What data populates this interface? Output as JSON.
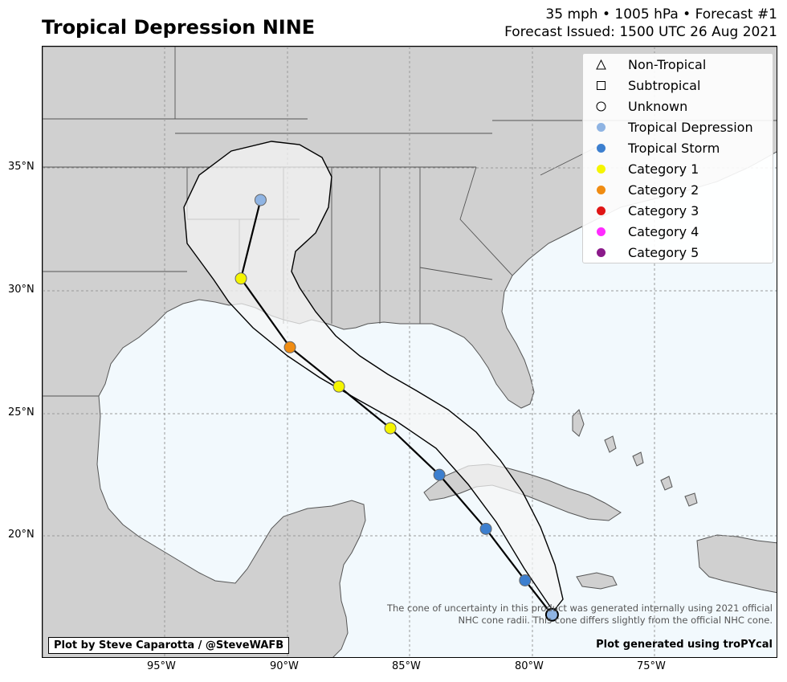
{
  "title": "Tropical Depression NINE",
  "subtitle_line1": "35 mph • 1005 hPa • Forecast #1",
  "subtitle_line2": "Forecast Issued: 1500 UTC 26 Aug 2021",
  "legend": [
    {
      "label": "Non-Tropical",
      "shape": "triangle",
      "color": "#ffffff"
    },
    {
      "label": "Subtropical",
      "shape": "square",
      "color": "#ffffff"
    },
    {
      "label": "Unknown",
      "shape": "circle",
      "color": "#ffffff"
    },
    {
      "label": "Tropical Depression",
      "shape": "circle",
      "color": "#8fb4e3"
    },
    {
      "label": "Tropical Storm",
      "shape": "circle",
      "color": "#3c7fcf"
    },
    {
      "label": "Category 1",
      "shape": "circle",
      "color": "#f5f500"
    },
    {
      "label": "Category 2",
      "shape": "circle",
      "color": "#f08c12"
    },
    {
      "label": "Category 3",
      "shape": "circle",
      "color": "#e01515"
    },
    {
      "label": "Category 4",
      "shape": "circle",
      "color": "#ff2bff"
    },
    {
      "label": "Category 5",
      "shape": "circle",
      "color": "#8a1a8a"
    }
  ],
  "lon_ticks": [
    "95°W",
    "90°W",
    "85°W",
    "80°W",
    "75°W"
  ],
  "lat_ticks": [
    "35°N",
    "30°N",
    "25°N",
    "20°N"
  ],
  "forecast_points": [
    {
      "lon": -79.2,
      "lat": 16.8,
      "category": "Tropical Depression"
    },
    {
      "lon": -80.3,
      "lat": 18.2,
      "category": "Tropical Storm"
    },
    {
      "lon": -81.9,
      "lat": 20.3,
      "category": "Tropical Storm"
    },
    {
      "lon": -83.8,
      "lat": 22.5,
      "category": "Tropical Storm"
    },
    {
      "lon": -85.8,
      "lat": 24.4,
      "category": "Category 1"
    },
    {
      "lon": -87.9,
      "lat": 26.1,
      "category": "Category 1"
    },
    {
      "lon": -89.9,
      "lat": 27.7,
      "category": "Category 2"
    },
    {
      "lon": -91.9,
      "lat": 30.5,
      "category": "Category 1"
    },
    {
      "lon": -91.1,
      "lat": 33.7,
      "category": "Tropical Depression"
    }
  ],
  "disclaimer_line1": "The cone of uncertainty in this product was generated internally using 2021 official",
  "disclaimer_line2": "NHC cone radii. This cone differs slightly from the official NHC cone.",
  "credit": "Plot by Steve Caparotta / @SteveWAFB",
  "generated": "Plot generated using troPYcal"
}
